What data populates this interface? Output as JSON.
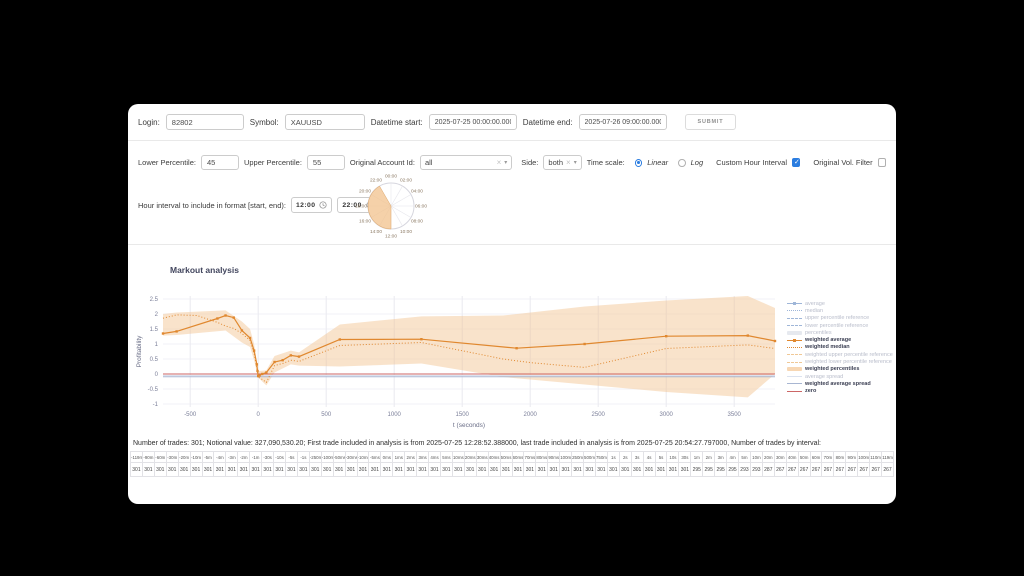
{
  "colors": {
    "accent_blue": "#2b7de0",
    "orange": "#e0882f",
    "band_orange": "#f2c28c",
    "zero_red": "#cc6666"
  },
  "icons": {
    "clear": "×",
    "dropdown": "▾",
    "check": "✓"
  },
  "header": {
    "login_label": "Login:",
    "login_value": "82802",
    "symbol_label": "Symbol:",
    "symbol_value": "XAUUSD",
    "datetime_start_label": "Datetime start:",
    "datetime_start_value": "2025-07-25 00:00:00.000",
    "datetime_end_label": "Datetime end:",
    "datetime_end_value": "2025-07-26 09:00:00.000",
    "submit_label": "SUBMIT"
  },
  "filters": {
    "lower_percentile_label": "Lower Percentile:",
    "lower_percentile_value": "45",
    "upper_percentile_label": "Upper Percentile:",
    "upper_percentile_value": "55",
    "account_label": "Original Account Id:",
    "account_value": "all",
    "side_label": "Side:",
    "side_value": "both",
    "time_scale_label": "Time scale:",
    "linear_label": "Linear",
    "log_label": "Log",
    "time_scale_selected": "Linear",
    "custom_hour_label": "Custom Hour Interval",
    "custom_hour_checked": true,
    "vol_filter_label": "Original Vol. Filter",
    "vol_filter_checked": false
  },
  "hour_interval": {
    "label": "Hour interval to include in format [start, end):",
    "start_value": "12:00",
    "end_value": "22:00",
    "clock": {
      "labels": [
        "00:00",
        "02:00",
        "04:00",
        "06:00",
        "08:00",
        "10:00",
        "12:00",
        "14:00",
        "16:00",
        "18:00",
        "20:00",
        "22:00"
      ],
      "fill_start_hour": 12,
      "fill_end_hour": 22,
      "fill_color": "#f2c28c"
    }
  },
  "summary_text": "Number of trades: 301; Notional value: 327,090,530.20; First trade included in analysis is from 2025-07-25 12:28:52.388000, last trade included in analysis is from 2025-07-25 20:54:27.797000, Number of trades by interval:",
  "trades_table": {
    "intervals": [
      "-119m",
      "-90m",
      "-60m",
      "-30m",
      "-20m",
      "-10m",
      "-5m",
      "-4m",
      "-3m",
      "-2m",
      "-1m",
      "-30s",
      "-10s",
      "-5s",
      "-1s",
      "-250ms",
      "-100ms",
      "-50ms",
      "-30ms",
      "-10ms",
      "-5ms",
      "0ms",
      "1ms",
      "2ms",
      "3ms",
      "4ms",
      "5ms",
      "10ms",
      "20ms",
      "30ms",
      "40ms",
      "50ms",
      "60ms",
      "70ms",
      "80ms",
      "90ms",
      "100ms",
      "250ms",
      "500ms",
      "750ms",
      "1s",
      "2s",
      "3s",
      "4s",
      "5s",
      "10s",
      "30s",
      "1m",
      "2m",
      "3m",
      "4m",
      "5m",
      "10m",
      "20m",
      "30m",
      "40m",
      "50m",
      "60m",
      "70m",
      "80m",
      "90m",
      "100m",
      "110m",
      "119m"
    ],
    "counts": [
      301,
      301,
      301,
      301,
      301,
      301,
      301,
      301,
      301,
      301,
      301,
      301,
      301,
      301,
      301,
      301,
      301,
      301,
      301,
      301,
      301,
      301,
      301,
      301,
      301,
      301,
      301,
      301,
      301,
      301,
      301,
      301,
      301,
      301,
      301,
      301,
      301,
      301,
      301,
      301,
      301,
      301,
      301,
      301,
      301,
      301,
      301,
      295,
      295,
      295,
      295,
      293,
      293,
      287,
      267,
      267,
      267,
      267,
      267,
      267,
      267,
      267,
      267,
      267
    ]
  },
  "chart_data": {
    "type": "line",
    "title": "Markout analysis",
    "xlabel": "t (seconds)",
    "ylabel": "Profitability",
    "xlim": [
      -700,
      3800
    ],
    "ylim": [
      -1.1,
      2.6
    ],
    "xticks": [
      -500,
      0,
      500,
      1000,
      1500,
      2000,
      2500,
      3000,
      3500
    ],
    "yticks": [
      -1,
      -0.5,
      0,
      0.5,
      1,
      1.5,
      2,
      2.5
    ],
    "grid": true,
    "legend_position": "right",
    "series": [
      {
        "name": "weighted percentiles",
        "type": "band",
        "color": "#f2c28c",
        "opacity": 0.45,
        "upper": [
          [
            -700,
            2.0
          ],
          [
            -600,
            2.05
          ],
          [
            -240,
            2.12
          ],
          [
            -120,
            1.75
          ],
          [
            -60,
            1.5
          ],
          [
            -30,
            1.0
          ],
          [
            0,
            0.1
          ],
          [
            60,
            0.12
          ],
          [
            120,
            0.6
          ],
          [
            240,
            0.78
          ],
          [
            300,
            0.72
          ],
          [
            600,
            1.65
          ],
          [
            1200,
            1.92
          ],
          [
            1800,
            1.95
          ],
          [
            2400,
            2.25
          ],
          [
            3000,
            2.45
          ],
          [
            3600,
            2.6
          ],
          [
            3800,
            2.2
          ]
        ],
        "lower": [
          [
            -700,
            1.28
          ],
          [
            -600,
            1.3
          ],
          [
            -240,
            1.45
          ],
          [
            -120,
            1.05
          ],
          [
            -60,
            0.9
          ],
          [
            -30,
            0.45
          ],
          [
            0,
            -0.12
          ],
          [
            60,
            -0.38
          ],
          [
            120,
            0.05
          ],
          [
            240,
            0.32
          ],
          [
            300,
            0.28
          ],
          [
            600,
            0.25
          ],
          [
            1200,
            0.35
          ],
          [
            1800,
            -0.1
          ],
          [
            2400,
            -0.35
          ],
          [
            3000,
            -0.6
          ],
          [
            3600,
            -0.78
          ],
          [
            3800,
            0.0
          ]
        ]
      },
      {
        "name": "average spread",
        "type": "line",
        "dash": "solid",
        "color": "#dbe2ef",
        "width": 1,
        "points": [
          [
            -700,
            -0.05
          ],
          [
            3800,
            -0.05
          ]
        ]
      },
      {
        "name": "weighted average spread",
        "type": "line",
        "dash": "solid",
        "color": "#a8b6d2",
        "width": 1,
        "points": [
          [
            -700,
            -0.09
          ],
          [
            3800,
            -0.09
          ]
        ]
      },
      {
        "name": "zero",
        "type": "line",
        "dash": "solid",
        "color": "#cc6666",
        "width": 1,
        "points": [
          [
            -700,
            0
          ],
          [
            3800,
            0
          ]
        ]
      },
      {
        "name": "weighted median",
        "type": "line",
        "dash": "dot",
        "color": "#e0882f",
        "width": 1,
        "points": [
          [
            -700,
            1.86
          ],
          [
            -600,
            1.97
          ],
          [
            -450,
            1.95
          ],
          [
            -300,
            1.72
          ],
          [
            -240,
            1.6
          ],
          [
            -180,
            1.52
          ],
          [
            -120,
            1.35
          ],
          [
            -60,
            1.12
          ],
          [
            -30,
            0.68
          ],
          [
            -10,
            0.22
          ],
          [
            -5,
            0.05
          ],
          [
            0,
            -0.1
          ],
          [
            30,
            -0.18
          ],
          [
            60,
            -0.28
          ],
          [
            120,
            0.28
          ],
          [
            180,
            0.35
          ],
          [
            240,
            0.46
          ],
          [
            300,
            0.42
          ],
          [
            600,
            0.95
          ],
          [
            1200,
            1.05
          ],
          [
            1800,
            0.5
          ],
          [
            2000,
            0.38
          ],
          [
            2400,
            0.22
          ],
          [
            3000,
            0.85
          ],
          [
            3600,
            0.97
          ],
          [
            3800,
            0.85
          ]
        ]
      },
      {
        "name": "weighted average",
        "type": "line",
        "dash": "solid",
        "color": "#e0882f",
        "width": 1.2,
        "marker": true,
        "points": [
          [
            -700,
            1.35
          ],
          [
            -600,
            1.42
          ],
          [
            -300,
            1.85
          ],
          [
            -240,
            1.95
          ],
          [
            -180,
            1.88
          ],
          [
            -120,
            1.45
          ],
          [
            -60,
            1.2
          ],
          [
            -30,
            0.78
          ],
          [
            -10,
            0.32
          ],
          [
            -5,
            0.1
          ],
          [
            0,
            -0.07
          ],
          [
            10,
            -0.05
          ],
          [
            30,
            0.0
          ],
          [
            60,
            0.05
          ],
          [
            120,
            0.4
          ],
          [
            180,
            0.46
          ],
          [
            240,
            0.62
          ],
          [
            300,
            0.58
          ],
          [
            600,
            1.15
          ],
          [
            1200,
            1.16
          ],
          [
            1900,
            0.86
          ],
          [
            2400,
            1.0
          ],
          [
            3000,
            1.26
          ],
          [
            3600,
            1.28
          ],
          [
            3800,
            1.1
          ]
        ]
      }
    ],
    "legend": [
      {
        "label": "average",
        "style": "line-marker",
        "color": "#9fb6d8",
        "active": false
      },
      {
        "label": "median",
        "style": "dotted",
        "color": "#9fb6d8",
        "active": false
      },
      {
        "label": "upper percentile reference",
        "style": "dashed",
        "color": "#9fb6d8",
        "active": false
      },
      {
        "label": "lower percentile reference",
        "style": "dashed",
        "color": "#9fb6d8",
        "active": false
      },
      {
        "label": "percentiles",
        "style": "band",
        "color": "#d9dde6",
        "active": false
      },
      {
        "label": "weighted average",
        "style": "line-marker",
        "color": "#e0882f",
        "active": true
      },
      {
        "label": "weighted median",
        "style": "dotted",
        "color": "#e0882f",
        "active": true
      },
      {
        "label": "weighted upper percentile reference",
        "style": "dashed",
        "color": "#f0c896",
        "active": false
      },
      {
        "label": "weighted lower percentile reference",
        "style": "dashed",
        "color": "#f0c896",
        "active": false
      },
      {
        "label": "weighted percentiles",
        "style": "band",
        "color": "#f2c28c",
        "active": true
      },
      {
        "label": "average spread",
        "style": "line",
        "color": "#dbe2ef",
        "active": false
      },
      {
        "label": "weighted average spread",
        "style": "line",
        "color": "#a8b6d2",
        "active": true
      },
      {
        "label": "zero",
        "style": "line",
        "color": "#cc6666",
        "active": true
      }
    ]
  }
}
